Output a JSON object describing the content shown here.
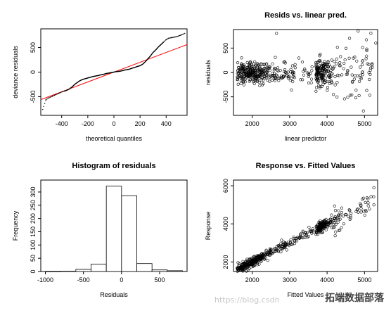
{
  "chart_data": [
    {
      "type": "scatter",
      "title": "",
      "xlabel": "theoretical quantiles",
      "ylabel": "deviance residuals",
      "xlim": [
        -560,
        560
      ],
      "ylim": [
        -880,
        880
      ],
      "xticks": [
        -400,
        -200,
        0,
        200,
        400
      ],
      "yticks": [
        -500,
        0,
        500
      ],
      "reference_line": {
        "color": "#ff0000",
        "points": [
          [
            -560,
            -560
          ],
          [
            560,
            560
          ]
        ]
      },
      "series": [
        {
          "values_x": [
            -545,
            -520,
            -495,
            -470,
            -445,
            -420,
            -395,
            -370,
            -345,
            -320,
            -300,
            -280,
            -260,
            -240,
            -220,
            -200,
            -180,
            -160,
            -140,
            -120,
            -100,
            -80,
            -60,
            -40,
            -20,
            0,
            20,
            40,
            60,
            80,
            100,
            120,
            140,
            160,
            180,
            200,
            220,
            240,
            260,
            280,
            300,
            320,
            340,
            360,
            380,
            400,
            420,
            440,
            460,
            480,
            500,
            520,
            545
          ],
          "values_y": [
            -760,
            -560,
            -520,
            -490,
            -460,
            -430,
            -400,
            -380,
            -350,
            -300,
            -250,
            -210,
            -175,
            -150,
            -135,
            -120,
            -105,
            -90,
            -80,
            -70,
            -55,
            -45,
            -30,
            -20,
            -10,
            0,
            10,
            15,
            25,
            40,
            50,
            60,
            80,
            95,
            115,
            130,
            160,
            210,
            270,
            330,
            400,
            450,
            510,
            560,
            610,
            660,
            690,
            700,
            710,
            720,
            740,
            760,
            790
          ]
        }
      ]
    },
    {
      "type": "scatter",
      "title": "Resids vs. linear pred.",
      "xlabel": "linear predictor",
      "ylabel": "residuals",
      "xlim": [
        1500,
        5350
      ],
      "ylim": [
        -880,
        880
      ],
      "xticks": [
        2000,
        3000,
        4000,
        5000
      ],
      "yticks": [
        -500,
        0,
        500
      ],
      "seed": 11
    },
    {
      "type": "bar",
      "title": "Histogram of residuals",
      "xlabel": "Residuals",
      "ylabel": "Frequency",
      "xlim": [
        -1060,
        860
      ],
      "ylim": [
        0,
        345
      ],
      "xticks": [
        -1000,
        -500,
        0,
        500
      ],
      "yticks": [
        0,
        50,
        100,
        150,
        200,
        250,
        300
      ],
      "bins": [
        {
          "from": -1000,
          "to": -800,
          "count": 0
        },
        {
          "from": -800,
          "to": -600,
          "count": 1
        },
        {
          "from": -600,
          "to": -400,
          "count": 8
        },
        {
          "from": -400,
          "to": -200,
          "count": 28
        },
        {
          "from": -200,
          "to": 0,
          "count": 322
        },
        {
          "from": 0,
          "to": 200,
          "count": 286
        },
        {
          "from": 200,
          "to": 400,
          "count": 30
        },
        {
          "from": 400,
          "to": 600,
          "count": 6
        },
        {
          "from": 600,
          "to": 800,
          "count": 3
        }
      ]
    },
    {
      "type": "scatter",
      "title": "Response vs. Fitted Values",
      "xlabel": "Fitted Values",
      "ylabel": "Response",
      "xlim": [
        1500,
        5350
      ],
      "ylim": [
        1500,
        6300
      ],
      "xticks": [
        2000,
        3000,
        4000,
        5000
      ],
      "yticks": [
        2000,
        4000,
        6000
      ],
      "seed": 23
    }
  ],
  "watermark": {
    "url": "https://blog.csdn",
    "brand": "拓端数据部落"
  }
}
